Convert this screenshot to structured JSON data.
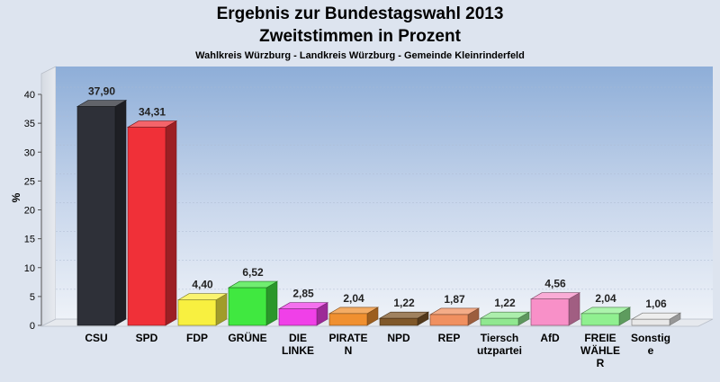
{
  "chart_data": {
    "type": "bar",
    "title": "Ergebnis zur Bundestagswahl 2013",
    "subtitle": "Zweitstimmen in Prozent",
    "subsubtitle": "Wahlkreis Würzburg - Landkreis Würzburg - Gemeinde Kleinrinderfeld",
    "ylabel": "%",
    "xlabel": "",
    "ylim": [
      0,
      40
    ],
    "yticks": [
      "0",
      "5",
      "10",
      "15",
      "20",
      "25",
      "30",
      "35",
      "40"
    ],
    "grid": true,
    "categories": [
      [
        "CSU"
      ],
      [
        "SPD"
      ],
      [
        "FDP"
      ],
      [
        "GRÜNE"
      ],
      [
        "DIE",
        "LINKE"
      ],
      [
        "PIRATE",
        "N"
      ],
      [
        "NPD"
      ],
      [
        "REP"
      ],
      [
        "Tiersch",
        "utzpartei"
      ],
      [
        "AfD"
      ],
      [
        "FREIE",
        "WÄHLE",
        "R"
      ],
      [
        "Sonstig",
        "e"
      ]
    ],
    "values": [
      37.9,
      34.31,
      4.4,
      6.52,
      2.85,
      2.04,
      1.22,
      1.87,
      1.22,
      4.56,
      2.04,
      1.06
    ],
    "value_labels": [
      "37,90",
      "34,31",
      "4,40",
      "6,52",
      "2,85",
      "2,04",
      "1,22",
      "1,87",
      "1,22",
      "4,56",
      "2,04",
      "1,06"
    ],
    "colors": [
      "#2e3038",
      "#f03038",
      "#f8f040",
      "#40e840",
      "#f040e8",
      "#f09030",
      "#80582a",
      "#f09060",
      "#90e890",
      "#f890c8",
      "#90f090",
      "#e8e8e8"
    ]
  }
}
